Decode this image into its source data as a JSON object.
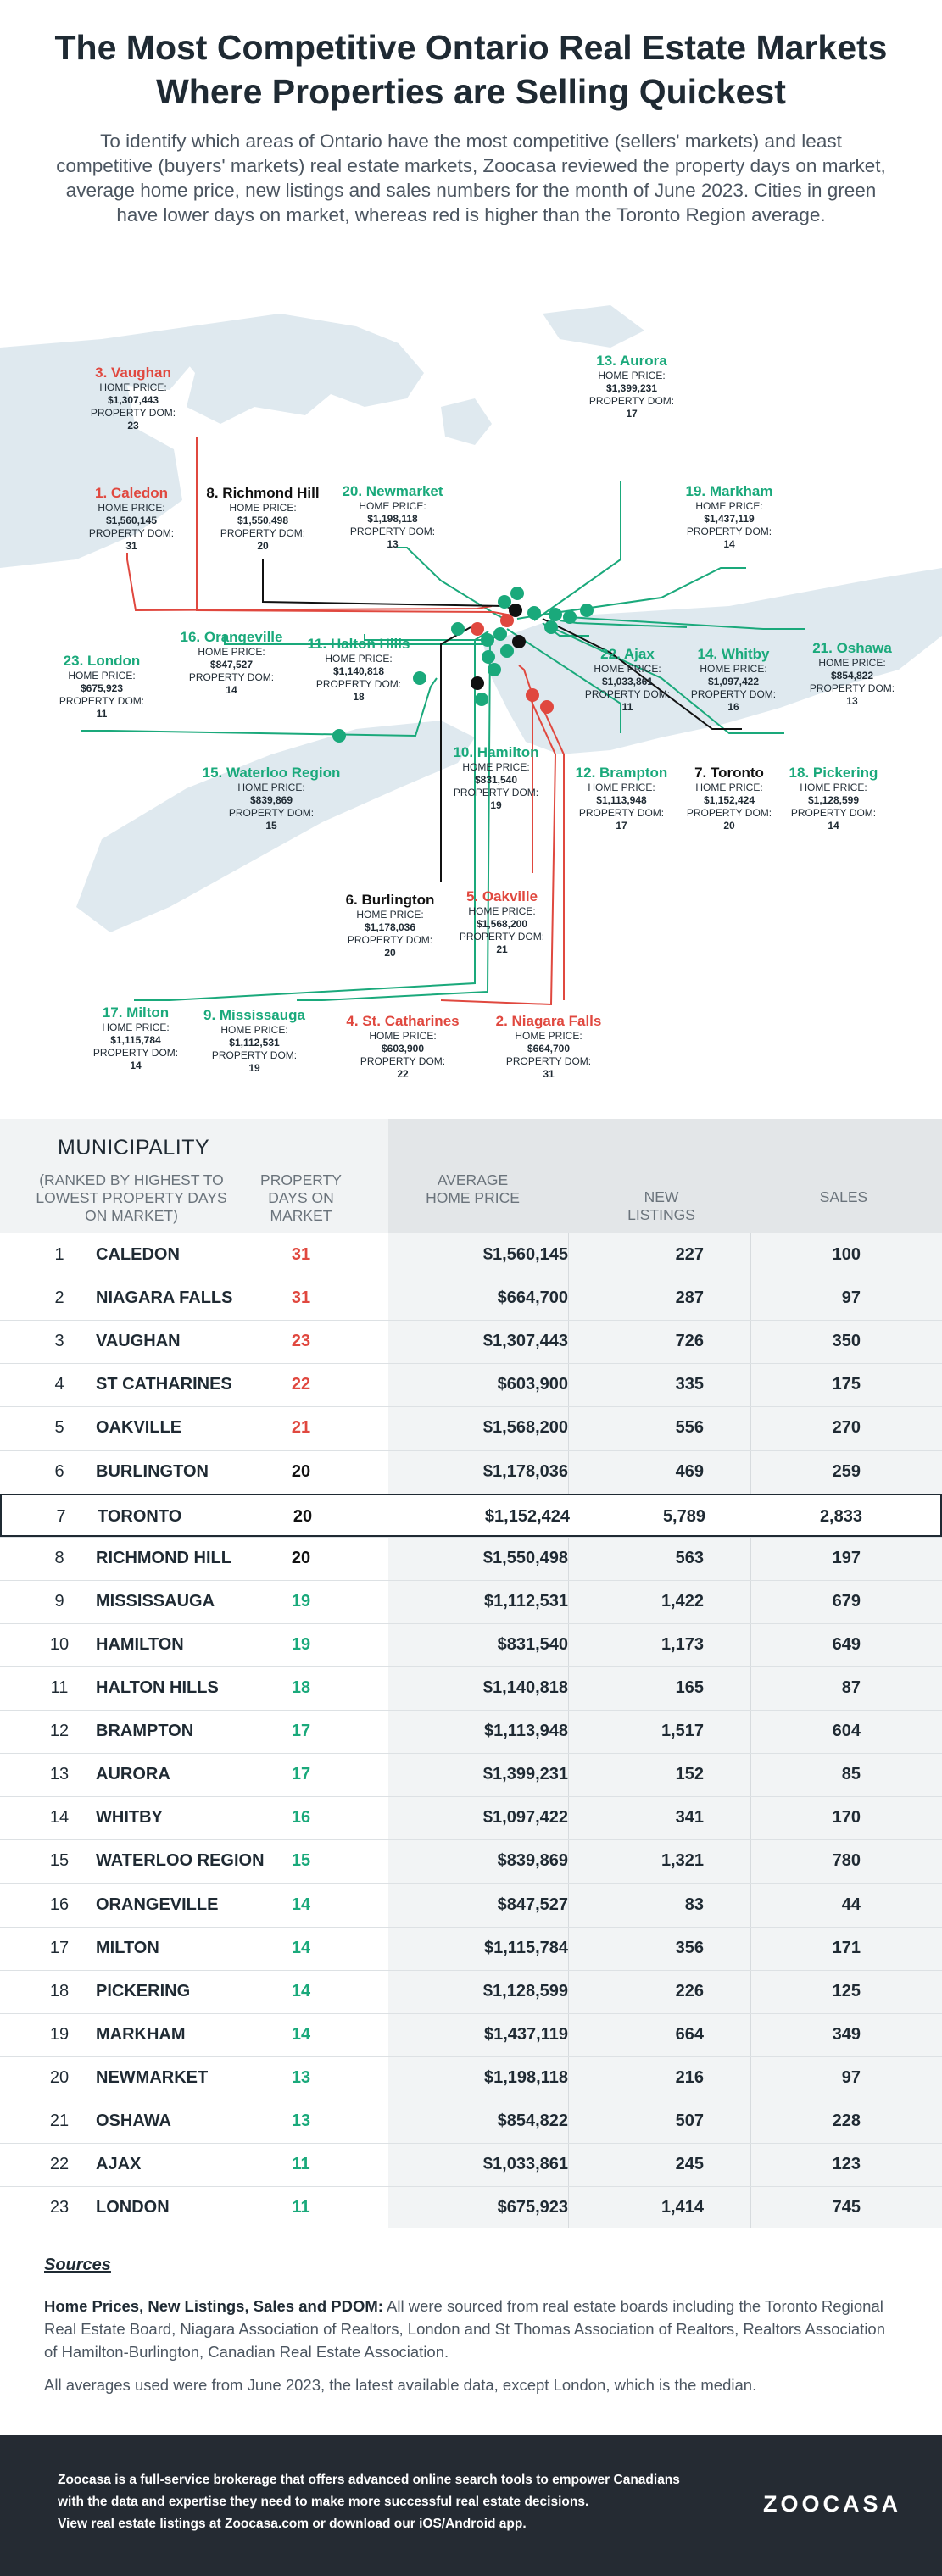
{
  "title": "The Most Competitive Ontario Real Estate Markets Where Properties are Selling Quickest",
  "intro": "To identify which areas of Ontario have the most competitive (sellers' markets) and least competitive (buyers' markets) real estate markets, Zoocasa reviewed the property days on market, average home price, new listings and sales numbers for the month of June 2023. Cities in green have lower days on market, whereas red is higher than the Toronto Region average.",
  "map": {
    "home_price_label": "HOME PRICE:",
    "dom_label": "PROPERTY DOM:",
    "labels": [
      {
        "name": "3. Vaughan",
        "price": "$1,307,443",
        "dom": "23",
        "tone": "red"
      },
      {
        "name": "13. Aurora",
        "price": "$1,399,231",
        "dom": "17",
        "tone": "green"
      },
      {
        "name": "1. Caledon",
        "price": "$1,560,145",
        "dom": "31",
        "tone": "red"
      },
      {
        "name": "8. Richmond Hill",
        "price": "$1,550,498",
        "dom": "20",
        "tone": "black"
      },
      {
        "name": "20. Newmarket",
        "price": "$1,198,118",
        "dom": "13",
        "tone": "green"
      },
      {
        "name": "19. Markham",
        "price": "$1,437,119",
        "dom": "14",
        "tone": "green"
      },
      {
        "name": "23. London",
        "price": "$675,923",
        "dom": "11",
        "tone": "green"
      },
      {
        "name": "16. Orangeville",
        "price": "$847,527",
        "dom": "14",
        "tone": "green"
      },
      {
        "name": "11. Halton Hills",
        "price": "$1,140,818",
        "dom": "18",
        "tone": "green"
      },
      {
        "name": "22. Ajax",
        "price": "$1,033,861",
        "dom": "11",
        "tone": "green"
      },
      {
        "name": "14. Whitby",
        "price": "$1,097,422",
        "dom": "16",
        "tone": "green"
      },
      {
        "name": "21. Oshawa",
        "price": "$854,822",
        "dom": "13",
        "tone": "green"
      },
      {
        "name": "15. Waterloo Region",
        "price": "$839,869",
        "dom": "15",
        "tone": "green"
      },
      {
        "name": "10. Hamilton",
        "price": "$831,540",
        "dom": "19",
        "tone": "green"
      },
      {
        "name": "12. Brampton",
        "price": "$1,113,948",
        "dom": "17",
        "tone": "green"
      },
      {
        "name": "7. Toronto",
        "price": "$1,152,424",
        "dom": "20",
        "tone": "black"
      },
      {
        "name": "18. Pickering",
        "price": "$1,128,599",
        "dom": "14",
        "tone": "green"
      },
      {
        "name": "6. Burlington",
        "price": "$1,178,036",
        "dom": "20",
        "tone": "black"
      },
      {
        "name": "5. Oakville",
        "price": "$1,568,200",
        "dom": "21",
        "tone": "red"
      },
      {
        "name": "17. Milton",
        "price": "$1,115,784",
        "dom": "14",
        "tone": "green"
      },
      {
        "name": "9. Mississauga",
        "price": "$1,112,531",
        "dom": "19",
        "tone": "green"
      },
      {
        "name": "4. St. Catharines",
        "price": "$603,900",
        "dom": "22",
        "tone": "red"
      },
      {
        "name": "2. Niagara Falls",
        "price": "$664,700",
        "dom": "31",
        "tone": "red"
      }
    ]
  },
  "table": {
    "header": {
      "municipality": "MUNICIPALITY",
      "municipality_sub": "(RANKED BY HIGHEST TO LOWEST PROPERTY DAYS ON MARKET)",
      "dom": "PROPERTY DAYS ON MARKET",
      "price": "AVERAGE HOME PRICE",
      "listings": "NEW LISTINGS",
      "sales": "SALES"
    },
    "rows": [
      {
        "rank": "1",
        "name": "CALEDON",
        "dom": "31",
        "tone": "red",
        "price": "$1,560,145",
        "listings": "227",
        "sales": "100"
      },
      {
        "rank": "2",
        "name": "NIAGARA FALLS",
        "dom": "31",
        "tone": "red",
        "price": "$664,700",
        "listings": "287",
        "sales": "97"
      },
      {
        "rank": "3",
        "name": "VAUGHAN",
        "dom": "23",
        "tone": "red",
        "price": "$1,307,443",
        "listings": "726",
        "sales": "350"
      },
      {
        "rank": "4",
        "name": "ST CATHARINES",
        "dom": "22",
        "tone": "red",
        "price": "$603,900",
        "listings": "335",
        "sales": "175"
      },
      {
        "rank": "5",
        "name": "OAKVILLE",
        "dom": "21",
        "tone": "red",
        "price": "$1,568,200",
        "listings": "556",
        "sales": "270"
      },
      {
        "rank": "6",
        "name": "BURLINGTON",
        "dom": "20",
        "tone": "black",
        "price": "$1,178,036",
        "listings": "469",
        "sales": "259"
      },
      {
        "rank": "7",
        "name": "TORONTO",
        "dom": "20",
        "tone": "black",
        "price": "$1,152,424",
        "listings": "5,789",
        "sales": "2,833"
      },
      {
        "rank": "8",
        "name": "RICHMOND HILL",
        "dom": "20",
        "tone": "black",
        "price": "$1,550,498",
        "listings": "563",
        "sales": "197"
      },
      {
        "rank": "9",
        "name": "MISSISSAUGA",
        "dom": "19",
        "tone": "green",
        "price": "$1,112,531",
        "listings": "1,422",
        "sales": "679"
      },
      {
        "rank": "10",
        "name": "HAMILTON",
        "dom": "19",
        "tone": "green",
        "price": "$831,540",
        "listings": "1,173",
        "sales": "649"
      },
      {
        "rank": "11",
        "name": "HALTON HILLS",
        "dom": "18",
        "tone": "green",
        "price": "$1,140,818",
        "listings": "165",
        "sales": "87"
      },
      {
        "rank": "12",
        "name": "BRAMPTON",
        "dom": "17",
        "tone": "green",
        "price": "$1,113,948",
        "listings": "1,517",
        "sales": "604"
      },
      {
        "rank": "13",
        "name": "AURORA",
        "dom": "17",
        "tone": "green",
        "price": "$1,399,231",
        "listings": "152",
        "sales": "85"
      },
      {
        "rank": "14",
        "name": "WHITBY",
        "dom": "16",
        "tone": "green",
        "price": "$1,097,422",
        "listings": "341",
        "sales": "170"
      },
      {
        "rank": "15",
        "name": "WATERLOO REGION",
        "dom": "15",
        "tone": "green",
        "price": "$839,869",
        "listings": "1,321",
        "sales": "780"
      },
      {
        "rank": "16",
        "name": "ORANGEVILLE",
        "dom": "14",
        "tone": "green",
        "price": "$847,527",
        "listings": "83",
        "sales": "44"
      },
      {
        "rank": "17",
        "name": "MILTON",
        "dom": "14",
        "tone": "green",
        "price": "$1,115,784",
        "listings": "356",
        "sales": "171"
      },
      {
        "rank": "18",
        "name": "PICKERING",
        "dom": "14",
        "tone": "green",
        "price": "$1,128,599",
        "listings": "226",
        "sales": "125"
      },
      {
        "rank": "19",
        "name": "MARKHAM",
        "dom": "14",
        "tone": "green",
        "price": "$1,437,119",
        "listings": "664",
        "sales": "349"
      },
      {
        "rank": "20",
        "name": "NEWMARKET",
        "dom": "13",
        "tone": "green",
        "price": "$1,198,118",
        "listings": "216",
        "sales": "97"
      },
      {
        "rank": "21",
        "name": "OSHAWA",
        "dom": "13",
        "tone": "green",
        "price": "$854,822",
        "listings": "507",
        "sales": "228"
      },
      {
        "rank": "22",
        "name": "AJAX",
        "dom": "11",
        "tone": "green",
        "price": "$1,033,861",
        "listings": "245",
        "sales": "123"
      },
      {
        "rank": "23",
        "name": "LONDON",
        "dom": "11",
        "tone": "green",
        "price": "$675,923",
        "listings": "1,414",
        "sales": "745"
      }
    ]
  },
  "sources": {
    "title": "Sources",
    "p1_bold": "Home Prices, New Listings, Sales and PDOM:",
    "p1_text": " All were sourced from real estate boards including the Toronto Regional Real Estate Board, Niagara Association of Realtors, London and St Thomas Association of Realtors, Realtors Association of Hamilton-Burlington, Canadian Real Estate Association.",
    "p2": "All averages used were from June 2023, the latest available data, except London, which is the median."
  },
  "footer": {
    "line1": "Zoocasa is a full-service brokerage that offers advanced online search tools to empower Canadians",
    "line2": "with the data and expertise they need to make more successful real estate decisions.",
    "line3": "View real estate listings at Zoocasa.com or download our iOS/Android app.",
    "logo": "ZOOCASA"
  },
  "colors": {
    "green": "#1aa97b",
    "red": "#e0483f",
    "black": "#111111",
    "water": "#dfe9ef",
    "footer_bg": "#252b33"
  }
}
